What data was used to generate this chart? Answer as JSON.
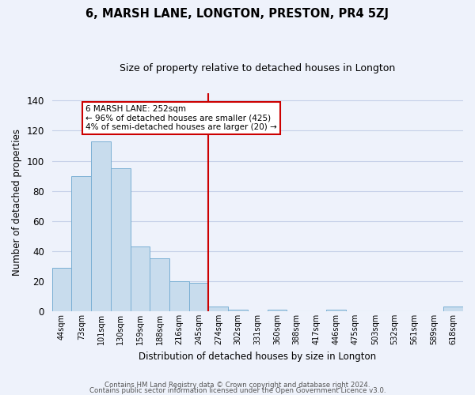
{
  "title": "6, MARSH LANE, LONGTON, PRESTON, PR4 5ZJ",
  "subtitle": "Size of property relative to detached houses in Longton",
  "xlabel": "Distribution of detached houses by size in Longton",
  "ylabel": "Number of detached properties",
  "bar_labels": [
    "44sqm",
    "73sqm",
    "101sqm",
    "130sqm",
    "159sqm",
    "188sqm",
    "216sqm",
    "245sqm",
    "274sqm",
    "302sqm",
    "331sqm",
    "360sqm",
    "388sqm",
    "417sqm",
    "446sqm",
    "475sqm",
    "503sqm",
    "532sqm",
    "561sqm",
    "589sqm",
    "618sqm"
  ],
  "bar_heights": [
    29,
    90,
    113,
    95,
    43,
    35,
    20,
    19,
    3,
    1,
    0,
    1,
    0,
    0,
    1,
    0,
    0,
    0,
    0,
    0,
    3
  ],
  "bar_color": "#c8dced",
  "bar_edge_color": "#7aafd4",
  "vline_x": 7.5,
  "vline_color": "#cc0000",
  "annotation_title": "6 MARSH LANE: 252sqm",
  "annotation_line1": "← 96% of detached houses are smaller (425)",
  "annotation_line2": "4% of semi-detached houses are larger (20) →",
  "annotation_box_color": "#ffffff",
  "annotation_border_color": "#cc0000",
  "ylim": [
    0,
    145
  ],
  "yticks": [
    0,
    20,
    40,
    60,
    80,
    100,
    120,
    140
  ],
  "footer1": "Contains HM Land Registry data © Crown copyright and database right 2024.",
  "footer2": "Contains public sector information licensed under the Open Government Licence v3.0.",
  "background_color": "#eef2fb",
  "grid_color": "#c5d0e8"
}
